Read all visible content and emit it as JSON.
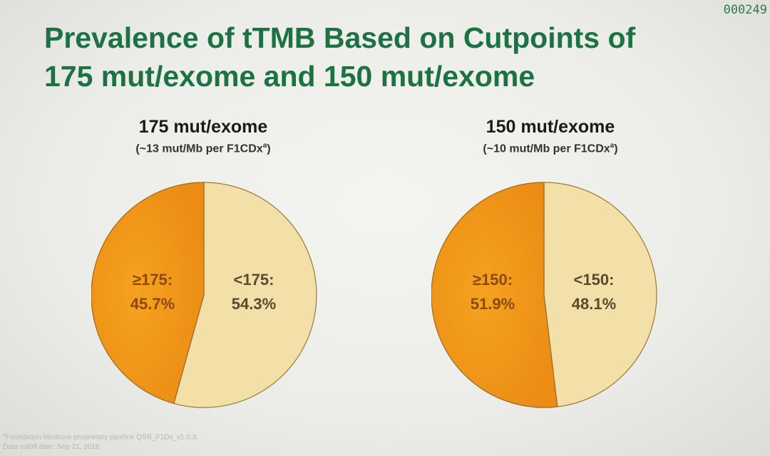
{
  "slide_number": "000249",
  "title": {
    "line1": "Prevalence of tTMB Based on Cutpoints of",
    "line2": "175 mut/exome and 150 mut/exome"
  },
  "colors": {
    "title": "#1d7244",
    "high_slice": "#f5a21f",
    "high_slice_shade": "#ec8c14",
    "low_slice": "#f3e0a8",
    "label_high": "#8a4a10"
  },
  "chart_data": [
    {
      "type": "pie",
      "title": "175 mut/exome",
      "subtitle_prefix": "(~13 mut/Mb per F1CDx",
      "subtitle_sup": "a",
      "subtitle_suffix": ")",
      "slices": [
        {
          "label_line1": "≥175:",
          "label_line2": "45.7%",
          "value": 45.7
        },
        {
          "label_line1": "<175:",
          "label_line2": "54.3%",
          "value": 54.3
        }
      ]
    },
    {
      "type": "pie",
      "title": "150 mut/exome",
      "subtitle_prefix": "(~10 mut/Mb per F1CDx",
      "subtitle_sup": "a",
      "subtitle_suffix": ")",
      "slices": [
        {
          "label_line1": "≥150:",
          "label_line2": "51.9%",
          "value": 51.9
        },
        {
          "label_line1": "<150:",
          "label_line2": "48.1%",
          "value": 48.1
        }
      ]
    }
  ],
  "footnotes": {
    "line1_sup": "a",
    "line1": "Foundation Medicine proprietary pipeline QSR_F1Dx_v1.0.3.",
    "line2": "Data cutoff date: Sep 21, 2018"
  }
}
